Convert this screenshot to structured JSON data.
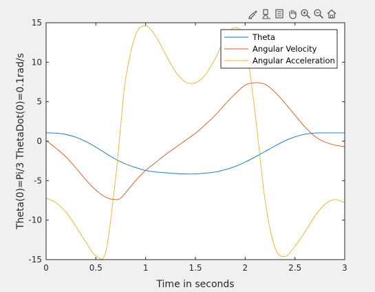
{
  "toolbar": {
    "icons": [
      "brush-icon",
      "data-tips-icon",
      "legend-toggle-icon",
      "pan-hand-icon",
      "zoom-in-icon",
      "zoom-out-icon",
      "home-icon"
    ]
  },
  "colors": {
    "theta": "#0072bd",
    "angular_velocity": "#d95319",
    "angular_acceleration": "#edb120",
    "background": "#f0f0f0",
    "axes": "#262626"
  },
  "chart_data": {
    "type": "line",
    "xlabel": "Time in seconds",
    "ylabel": "Theta(0)=Pi/3 ThetaDot(0)=0.1rad/s",
    "xlim": [
      0,
      3
    ],
    "ylim": [
      -15,
      15
    ],
    "xticks": [
      "0",
      "0.5",
      "1",
      "1.5",
      "2",
      "2.5",
      "3"
    ],
    "yticks": [
      "15",
      "10",
      "5",
      "0",
      "-5",
      "-10",
      "-15"
    ],
    "legend_position": "top-right",
    "grid": false,
    "x": [
      0,
      0.1,
      0.2,
      0.3,
      0.4,
      0.5,
      0.6,
      0.7,
      0.75,
      0.8,
      0.9,
      1.0,
      1.1,
      1.2,
      1.3,
      1.4,
      1.5,
      1.6,
      1.7,
      1.8,
      1.9,
      2.0,
      2.1,
      2.2,
      2.3,
      2.4,
      2.5,
      2.6,
      2.7,
      2.8,
      2.9,
      3.0
    ],
    "series": [
      {
        "name": "Theta",
        "values": [
          1.05,
          1.02,
          0.85,
          0.5,
          -0.05,
          -0.75,
          -1.55,
          -2.3,
          -2.6,
          -2.9,
          -3.35,
          -3.7,
          -3.9,
          -4.0,
          -4.1,
          -4.15,
          -4.15,
          -4.05,
          -3.9,
          -3.6,
          -3.2,
          -2.65,
          -2.0,
          -1.3,
          -0.6,
          0.05,
          0.55,
          0.88,
          1.03,
          1.05,
          1.05,
          1.05
        ]
      },
      {
        "name": "Angular Velocity",
        "values": [
          0.1,
          -0.9,
          -2.0,
          -3.4,
          -4.9,
          -6.2,
          -7.1,
          -7.4,
          -7.2,
          -6.5,
          -5.0,
          -3.7,
          -2.7,
          -1.7,
          -0.8,
          0.1,
          1.0,
          2.1,
          3.3,
          4.7,
          6.0,
          7.1,
          7.4,
          7.2,
          6.2,
          4.8,
          3.3,
          1.8,
          0.6,
          -0.1,
          -0.5,
          -0.7
        ]
      },
      {
        "name": "Angular Acceleration",
        "values": [
          -7.2,
          -7.8,
          -9.0,
          -10.8,
          -12.8,
          -14.5,
          -14.0,
          -4.5,
          2.0,
          8.0,
          13.5,
          14.6,
          13.3,
          11.0,
          8.8,
          7.5,
          7.4,
          8.4,
          10.5,
          13.0,
          14.4,
          12.5,
          3.5,
          -7.5,
          -13.5,
          -14.6,
          -13.3,
          -11.5,
          -9.5,
          -8.0,
          -7.4,
          -7.8
        ]
      }
    ]
  }
}
